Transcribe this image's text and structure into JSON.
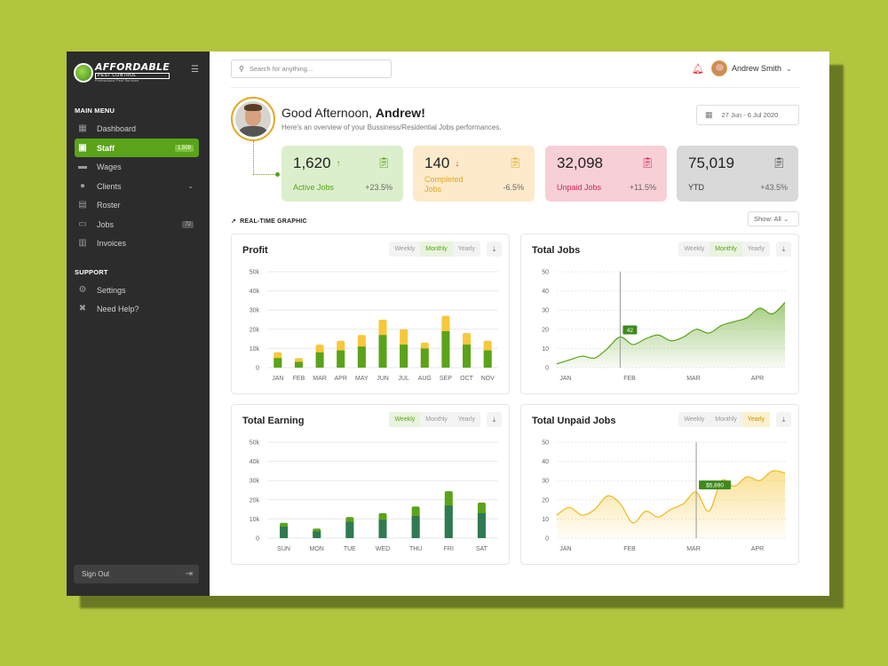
{
  "sidebar": {
    "logo": {
      "main": "AFFORDABLE",
      "sub": "PEST CONTROL",
      "tagline": "Professional Pest Services"
    },
    "main_menu_label": "MAIN MENU",
    "items": [
      {
        "label": "Dashboard",
        "icon": "dashboard-icon"
      },
      {
        "label": "Staff",
        "icon": "staff-badge-icon",
        "badge": "1,509",
        "active": true
      },
      {
        "label": "Wages",
        "icon": "wallet-icon"
      },
      {
        "label": "Clients",
        "icon": "user-icon"
      },
      {
        "label": "Roster",
        "icon": "roster-icon"
      },
      {
        "label": "Jobs",
        "icon": "briefcase-icon",
        "badge": "72"
      },
      {
        "label": "Invoices",
        "icon": "invoice-icon"
      }
    ],
    "support_label": "SUPPORT",
    "support_items": [
      {
        "label": "Settings",
        "icon": "gear-icon"
      },
      {
        "label": "Need Help?",
        "icon": "help-icon"
      }
    ],
    "sign_out": "Sign Out"
  },
  "header": {
    "search_placeholder": "Search for anything...",
    "user_name": "Andrew Smith"
  },
  "greeting": {
    "prefix": "Good Afternoon, ",
    "name": "Andrew!",
    "subtitle": "Here's an overview of your Bussiness/Residential Jobs performances.",
    "date_range": "27 Jun - 6 Jul 2020"
  },
  "stats": [
    {
      "value": "1,620",
      "arrow": "↑",
      "label": "Active Jobs",
      "change": "+23.5%"
    },
    {
      "value": "140",
      "arrow": "↓",
      "label": "Completed Jobs",
      "change": "-6.5%"
    },
    {
      "value": "32,098",
      "label": "Unpaid Jobs",
      "change": "+11.5%"
    },
    {
      "value": "75,019",
      "label": "YTD",
      "change": "+43.5%"
    }
  ],
  "realtime": {
    "label": "REAL-TIME GRAPHIC",
    "show": "Show: All"
  },
  "tab_labels": [
    "Weekly",
    "Monthly",
    "Yearly"
  ],
  "colors": {
    "green": "#5aa31a",
    "yellow": "#f6c83a",
    "dark_green": "#2f7a52",
    "red": "#e0303a"
  },
  "chart_data": [
    {
      "type": "bar",
      "title": "Profit",
      "active_tab": "Monthly",
      "categories": [
        "JAN",
        "FEB",
        "MAR",
        "APR",
        "MAY",
        "JUN",
        "JUL",
        "AUG",
        "SEP",
        "OCT",
        "NOV"
      ],
      "y_ticks": [
        "0",
        "10k",
        "20k",
        "30k",
        "40k",
        "50k"
      ],
      "ylim": [
        0,
        50000
      ],
      "series": [
        {
          "values": [
            5000,
            3000,
            8000,
            9000,
            11000,
            17000,
            12000,
            10000,
            19000,
            12000,
            9000
          ]
        },
        {
          "values": [
            8000,
            5000,
            12000,
            14000,
            17000,
            25000,
            20000,
            13000,
            27000,
            18000,
            14000
          ]
        }
      ]
    },
    {
      "type": "area",
      "title": "Total Jobs",
      "active_tab": "Monthly",
      "x_ticks": [
        "JAN",
        "FEB",
        "MAR",
        "APR"
      ],
      "y_ticks": [
        "0",
        "10",
        "20",
        "30",
        "40",
        "50"
      ],
      "ylim": [
        0,
        50
      ],
      "x": [
        0,
        0.2,
        0.4,
        0.6,
        0.8,
        1.0,
        1.2,
        1.4,
        1.6,
        1.8,
        2.0,
        2.2,
        2.4,
        2.6,
        2.8,
        3.0,
        3.2,
        3.4,
        3.6
      ],
      "values": [
        2,
        4,
        6,
        5,
        10,
        16,
        12,
        15,
        17,
        14,
        16,
        20,
        18,
        22,
        24,
        26,
        31,
        28,
        34
      ],
      "marker": {
        "x": 1.0,
        "label": "42"
      }
    },
    {
      "type": "bar",
      "title": "Total Earning",
      "active_tab": "Weekly",
      "categories": [
        "SUN",
        "MON",
        "TUE",
        "WED",
        "THU",
        "FRI",
        "SAT"
      ],
      "y_ticks": [
        "0",
        "10k",
        "20k",
        "30k",
        "40k",
        "50k"
      ],
      "ylim": [
        0,
        50000
      ],
      "series": [
        {
          "values": [
            6000,
            3500,
            8500,
            9500,
            11500,
            17000,
            13000
          ]
        },
        {
          "values": [
            8000,
            5000,
            11000,
            13000,
            16500,
            24500,
            18500
          ]
        }
      ]
    },
    {
      "type": "area",
      "title": "Total Unpaid Jobs",
      "active_tab": "Yearly",
      "x_ticks": [
        "JAN",
        "FEB",
        "MAR",
        "APR"
      ],
      "y_ticks": [
        "0",
        "10",
        "20",
        "30",
        "40",
        "50"
      ],
      "ylim": [
        0,
        50
      ],
      "x": [
        0,
        0.2,
        0.4,
        0.6,
        0.8,
        1.0,
        1.2,
        1.4,
        1.6,
        1.8,
        2.0,
        2.2,
        2.4,
        2.6,
        2.8,
        3.0,
        3.2,
        3.4,
        3.6
      ],
      "values": [
        12,
        16,
        12,
        15,
        22,
        18,
        8,
        14,
        11,
        15,
        18,
        24,
        14,
        30,
        27,
        32,
        30,
        35,
        34
      ],
      "marker": {
        "x": 2.2,
        "label": "$5,890"
      }
    }
  ]
}
